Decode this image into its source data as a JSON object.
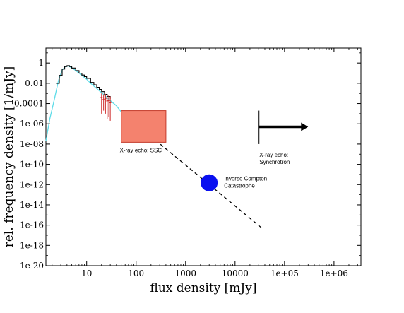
{
  "chart_data": {
    "type": "line",
    "title": "",
    "xlabel": "flux density [mJy]",
    "ylabel": "rel. frequency density [1/mJy]",
    "xscale": "log",
    "yscale": "log",
    "xlim": [
      1.5,
      3500000
    ],
    "ylim": [
      1e-20,
      30
    ],
    "x_ticks": [
      {
        "value": 10,
        "label": "10"
      },
      {
        "value": 100,
        "label": "100"
      },
      {
        "value": 1000,
        "label": "1000"
      },
      {
        "value": 10000,
        "label": "10000"
      },
      {
        "value": 100000,
        "label": "1e+05"
      },
      {
        "value": 1000000,
        "label": "1e+06"
      }
    ],
    "y_ticks": [
      {
        "value": 1,
        "label": "1"
      },
      {
        "value": 0.01,
        "label": "0.01"
      },
      {
        "value": 0.0001,
        "label": "0.0001"
      },
      {
        "value": 1e-06,
        "label": "1e-06"
      },
      {
        "value": 1e-08,
        "label": "1e-08"
      },
      {
        "value": 1e-10,
        "label": "1e-10"
      },
      {
        "value": 1e-12,
        "label": "1e-12"
      },
      {
        "value": 1e-14,
        "label": "1e-14"
      },
      {
        "value": 1e-16,
        "label": "1e-16"
      },
      {
        "value": 1e-18,
        "label": "1e-18"
      },
      {
        "value": 1e-20,
        "label": "1e-20"
      }
    ],
    "grid": false,
    "series": [
      {
        "style": "cyan-line",
        "color": "#5fdce8",
        "x": [
          1.5,
          1.8,
          2.2,
          2.7,
          3.2,
          3.7,
          4.2,
          5,
          6,
          7,
          8,
          10,
          12,
          15,
          20,
          25,
          30,
          40,
          50
        ],
        "y": [
          2e-08,
          3e-06,
          0.0002,
          0.02,
          0.2,
          0.45,
          0.5,
          0.35,
          0.18,
          0.1,
          0.06,
          0.025,
          0.01,
          0.004,
          0.0012,
          0.00045,
          0.0002,
          6e-05,
          1.5e-05
        ]
      },
      {
        "style": "black-histogram",
        "color": "#000000",
        "x": [
          2.4,
          2.8,
          3.2,
          3.6,
          4.0,
          4.5,
          5,
          6,
          7,
          8,
          9,
          10,
          12,
          14,
          16,
          18,
          20,
          23,
          26,
          30
        ],
        "y": [
          0.01,
          0.06,
          0.25,
          0.45,
          0.55,
          0.45,
          0.32,
          0.18,
          0.1,
          0.065,
          0.045,
          0.03,
          0.012,
          0.007,
          0.004,
          0.0025,
          0.0015,
          0.0008,
          0.0005,
          0.0003
        ]
      },
      {
        "style": "red-error-bars",
        "color": "#cc2222",
        "x": [
          20,
          22,
          24,
          26,
          28,
          30
        ],
        "y": [
          0.0004,
          0.00025,
          0.0003,
          0.00018,
          0.0002,
          0.00012
        ],
        "ylow": [
          1e-05,
          2e-05,
          1e-05,
          3e-06,
          5e-06,
          2e-06
        ],
        "yhigh": [
          0.001,
          0.0008,
          0.0009,
          0.0006,
          0.0007,
          0.0005
        ]
      },
      {
        "style": "dashed-extrapolation",
        "color": "#000000",
        "x": [
          50,
          35000
        ],
        "y": [
          1.5e-05,
          5e-17
        ]
      }
    ],
    "annotations": [
      {
        "type": "box",
        "label": "X-ray echo: SSC",
        "x_range": [
          50,
          400
        ],
        "y_range": [
          1.5e-08,
          2e-05
        ],
        "fill": "#f4826e",
        "stroke": "#c43a2a"
      },
      {
        "type": "circle",
        "label_lines": [
          "Inverse Compton",
          "Catastrophe"
        ],
        "x": 3000,
        "y": 1.5e-12,
        "fill": "#0a10f0"
      },
      {
        "type": "lower-limit-arrow",
        "label_lines": [
          "X-ray echo:",
          "Synchrotron"
        ],
        "x": 30000,
        "y": 5e-07,
        "y_span": [
          1e-08,
          2e-05
        ],
        "x_arrow_end": 300000
      }
    ]
  }
}
